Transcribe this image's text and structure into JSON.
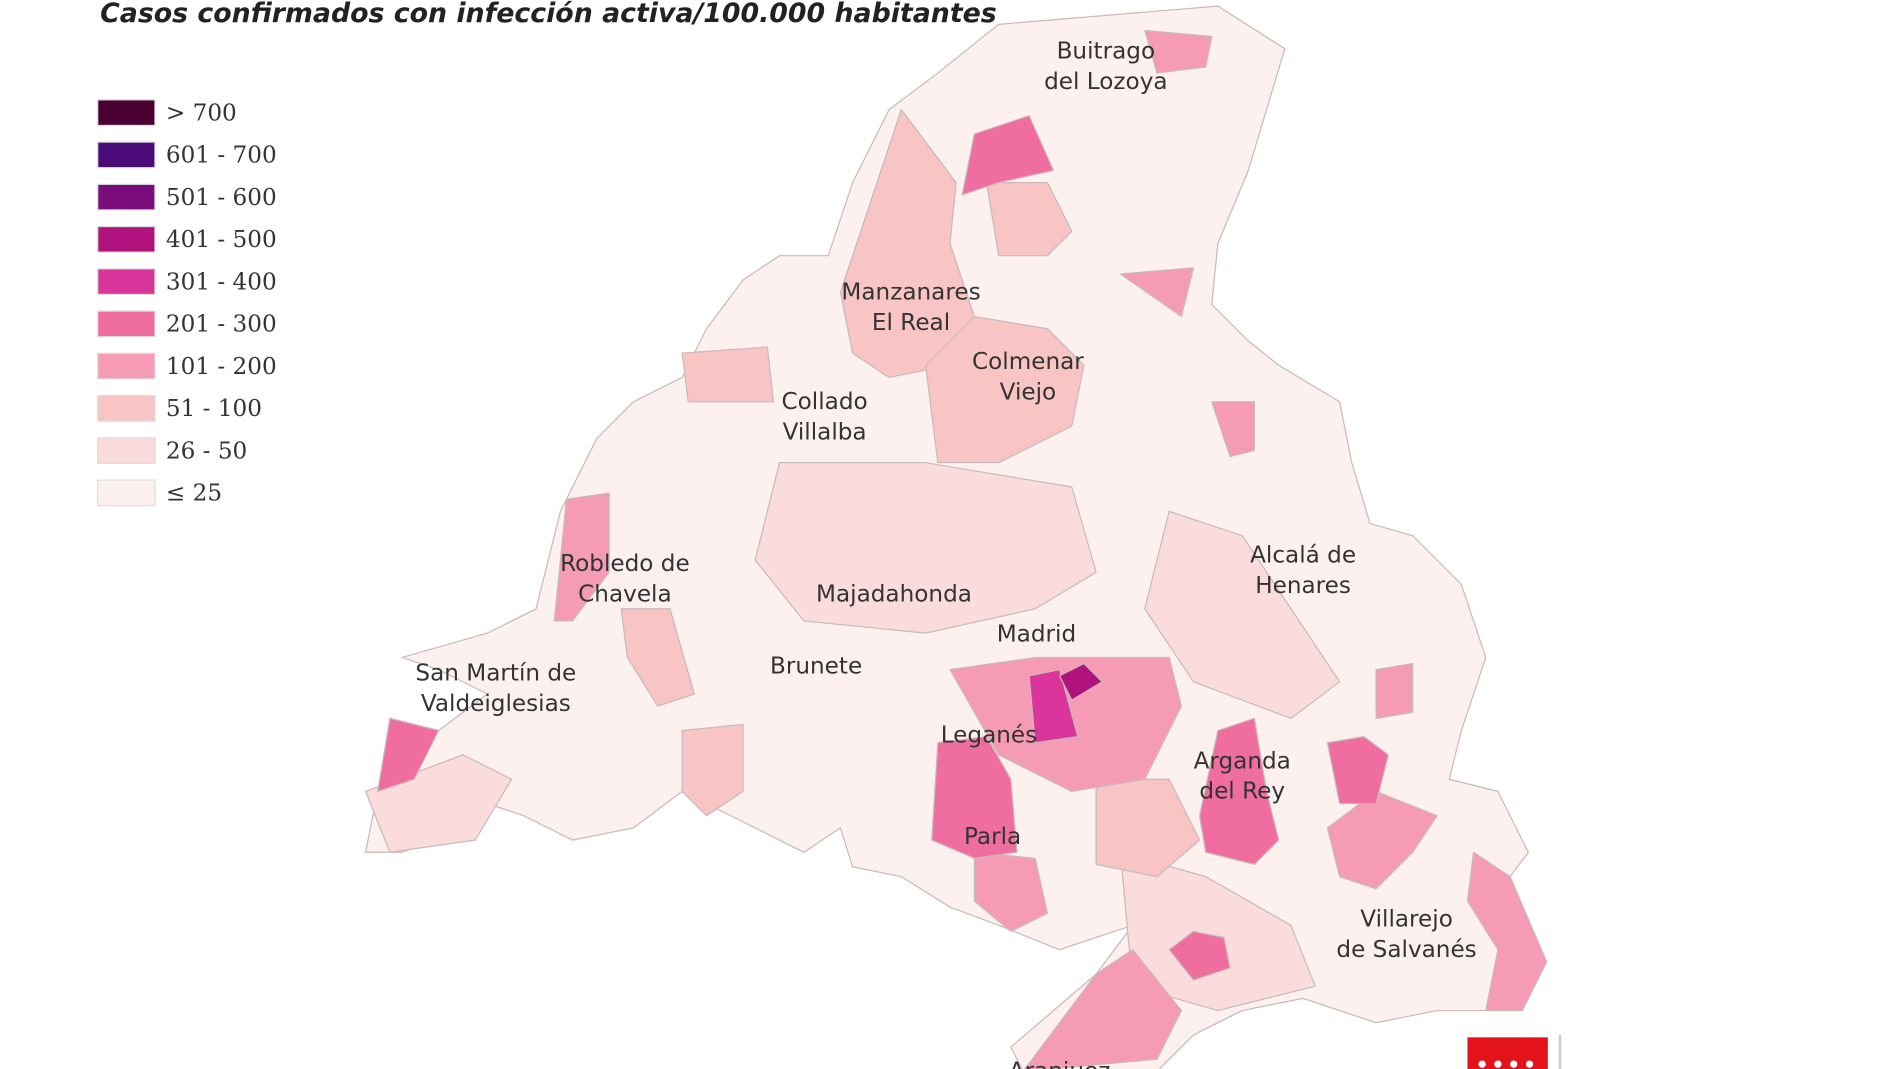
{
  "map": {
    "title": "Casos confirmados con infección activa/100.000 habitantes",
    "legend": [
      {
        "label": "> 700",
        "color": "#4a0030"
      },
      {
        "label": "601 - 700",
        "color": "#4a0a78"
      },
      {
        "label": "501 - 600",
        "color": "#7a0c7c"
      },
      {
        "label": "401 - 500",
        "color": "#b0127e"
      },
      {
        "label": "301 - 400",
        "color": "#d9359a"
      },
      {
        "label": "201 - 300",
        "color": "#f06e9f"
      },
      {
        "label": "101 - 200",
        "color": "#f59bb6"
      },
      {
        "label": "51 - 100",
        "color": "#f8c4c4"
      },
      {
        "label": "26 - 50",
        "color": "#fadcdc"
      },
      {
        "label": "≤ 25",
        "color": "#fdf1ef"
      }
    ],
    "places": [
      {
        "lines": [
          "Buitrago",
          "del Lozoya"
        ]
      },
      {
        "lines": [
          "Manzanares",
          "El Real"
        ]
      },
      {
        "lines": [
          "Colmenar",
          "Viejo"
        ]
      },
      {
        "lines": [
          "Collado",
          "Villalba"
        ]
      },
      {
        "lines": [
          "Robledo de",
          "Chavela"
        ]
      },
      {
        "lines": [
          "Majadahonda"
        ]
      },
      {
        "lines": [
          "Alcalá de",
          "Henares"
        ]
      },
      {
        "lines": [
          "Madrid"
        ]
      },
      {
        "lines": [
          "San Martín de",
          "Valdeiglesias"
        ]
      },
      {
        "lines": [
          "Brunete"
        ]
      },
      {
        "lines": [
          "Leganés"
        ]
      },
      {
        "lines": [
          "Arganda",
          "del Rey"
        ]
      },
      {
        "lines": [
          "Parla"
        ]
      },
      {
        "lines": [
          "Villarejo",
          "de Salvanés"
        ]
      },
      {
        "lines": [
          "Aranjuez"
        ]
      }
    ]
  }
}
